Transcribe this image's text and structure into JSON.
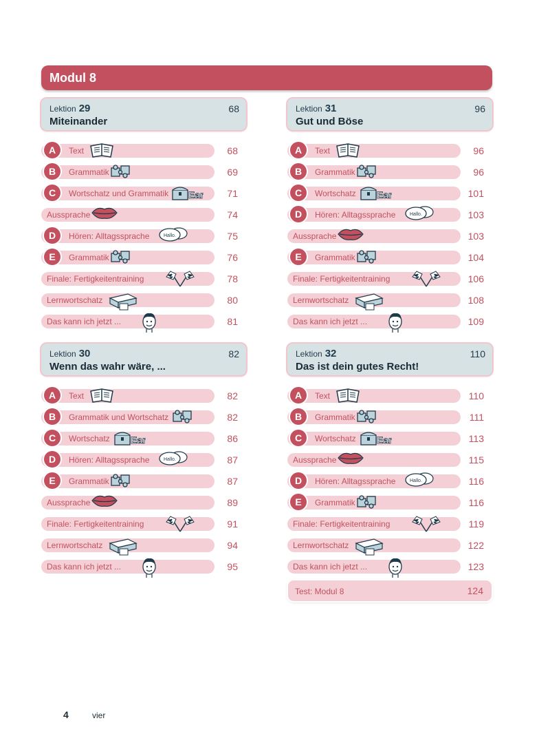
{
  "modul_title": "Modul 8",
  "lesson_label": "Lektion",
  "lessons": [
    {
      "number": "29",
      "page": "68",
      "title": "Miteinander",
      "rows": [
        {
          "letter": "A",
          "text": "Text",
          "page": "68",
          "icon": "book-icon"
        },
        {
          "letter": "B",
          "text": "Grammatik",
          "page": "69",
          "icon": "puzzle-icon"
        },
        {
          "letter": "C",
          "text": "Wortschatz und Grammatik",
          "page": "71",
          "icon": "treasure-chest-icon"
        },
        {
          "letter": "",
          "text": "Aussprache",
          "page": "74",
          "icon": "lips-icon"
        },
        {
          "letter": "D",
          "text": "Hören: Alltagssprache",
          "page": "75",
          "icon": "speech-bubbles-icon"
        },
        {
          "letter": "E",
          "text": "Grammatik",
          "page": "76",
          "icon": "puzzle-icon"
        },
        {
          "letter": "",
          "text": "Finale: Fertigkeitentraining",
          "page": "78",
          "icon": "checkered-flags-icon"
        },
        {
          "letter": "",
          "text": "Lernwortschatz",
          "page": "80",
          "icon": "card-box-icon"
        },
        {
          "letter": "",
          "text": "Das kann ich jetzt ...",
          "page": "81",
          "icon": "face-icon"
        }
      ]
    },
    {
      "number": "31",
      "page": "96",
      "title": "Gut und Böse",
      "rows": [
        {
          "letter": "A",
          "text": "Text",
          "page": "96",
          "icon": "book-icon"
        },
        {
          "letter": "B",
          "text": "Grammatik",
          "page": "96",
          "icon": "puzzle-icon"
        },
        {
          "letter": "C",
          "text": "Wortschatz",
          "page": "101",
          "icon": "treasure-chest-icon"
        },
        {
          "letter": "D",
          "text": "Hören: Alltagssprache",
          "page": "103",
          "icon": "speech-bubbles-icon"
        },
        {
          "letter": "",
          "text": "Aussprache",
          "page": "103",
          "icon": "lips-icon"
        },
        {
          "letter": "E",
          "text": "Grammatik",
          "page": "104",
          "icon": "puzzle-icon"
        },
        {
          "letter": "",
          "text": "Finale: Fertigkeitentraining",
          "page": "106",
          "icon": "checkered-flags-icon"
        },
        {
          "letter": "",
          "text": "Lernwortschatz",
          "page": "108",
          "icon": "card-box-icon"
        },
        {
          "letter": "",
          "text": "Das kann ich jetzt ...",
          "page": "109",
          "icon": "face-icon"
        }
      ]
    },
    {
      "number": "30",
      "page": "82",
      "title": "Wenn das wahr wäre, ...",
      "rows": [
        {
          "letter": "A",
          "text": "Text",
          "page": "82",
          "icon": "book-icon"
        },
        {
          "letter": "B",
          "text": "Grammatik und Wortschatz",
          "page": "82",
          "icon": "puzzle-icon"
        },
        {
          "letter": "C",
          "text": "Wortschatz",
          "page": "86",
          "icon": "treasure-chest-icon"
        },
        {
          "letter": "D",
          "text": "Hören: Alltagssprache",
          "page": "87",
          "icon": "speech-bubbles-icon"
        },
        {
          "letter": "E",
          "text": "Grammatik",
          "page": "87",
          "icon": "puzzle-icon"
        },
        {
          "letter": "",
          "text": "Aussprache",
          "page": "89",
          "icon": "lips-icon"
        },
        {
          "letter": "",
          "text": "Finale: Fertigkeitentraining",
          "page": "91",
          "icon": "checkered-flags-icon"
        },
        {
          "letter": "",
          "text": "Lernwortschatz",
          "page": "94",
          "icon": "card-box-icon"
        },
        {
          "letter": "",
          "text": "Das kann ich jetzt ...",
          "page": "95",
          "icon": "face-icon"
        }
      ]
    },
    {
      "number": "32",
      "page": "110",
      "title": "Das ist dein gutes Recht!",
      "rows": [
        {
          "letter": "A",
          "text": "Text",
          "page": "110",
          "icon": "book-icon"
        },
        {
          "letter": "B",
          "text": "Grammatik",
          "page": "111",
          "icon": "puzzle-icon"
        },
        {
          "letter": "C",
          "text": "Wortschatz",
          "page": "113",
          "icon": "treasure-chest-icon"
        },
        {
          "letter": "",
          "text": "Aussprache",
          "page": "115",
          "icon": "lips-icon"
        },
        {
          "letter": "D",
          "text": "Hören: Alltagssprache",
          "page": "116",
          "icon": "speech-bubbles-icon"
        },
        {
          "letter": "E",
          "text": "Grammatik",
          "page": "116",
          "icon": "puzzle-icon"
        },
        {
          "letter": "",
          "text": "Finale: Fertigkeitentraining",
          "page": "119",
          "icon": "checkered-flags-icon"
        },
        {
          "letter": "",
          "text": "Lernwortschatz",
          "page": "122",
          "icon": "card-box-icon"
        },
        {
          "letter": "",
          "text": "Das kann ich jetzt ...",
          "page": "123",
          "icon": "face-icon"
        }
      ]
    }
  ],
  "test": {
    "text": "Test: Modul 8",
    "page": "124"
  },
  "footer": {
    "page_number": "4",
    "page_word": "vier"
  },
  "colors": {
    "accent": "#c3505f",
    "row_bg": "#f4d0d6",
    "header_bg": "#d7e2e5"
  }
}
